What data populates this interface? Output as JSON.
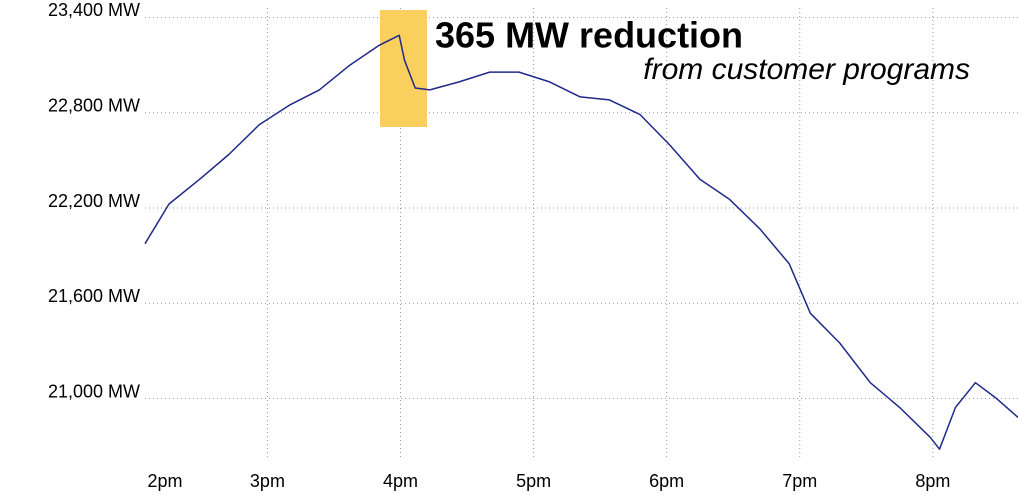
{
  "chart_data": {
    "type": "line",
    "annotation": "365 MW reduction",
    "annotation_subtitle": "from customer programs",
    "x": [
      14.08,
      14.26,
      14.49,
      14.71,
      14.94,
      15.17,
      15.39,
      15.62,
      15.84,
      15.99,
      16.03,
      16.11,
      16.22,
      16.44,
      16.67,
      16.89,
      17.12,
      17.35,
      17.57,
      17.8,
      18.02,
      18.25,
      18.47,
      18.7,
      18.92,
      19.08,
      19.3,
      19.53,
      19.75,
      19.98,
      20.05,
      20.17,
      20.32,
      20.47,
      20.64
    ],
    "series": [
      {
        "color": "#1f2a8a",
        "values": [
          21975,
          22225,
          22381,
          22537,
          22725,
          22850,
          22944,
          23100,
          23225,
          23288,
          23131,
          22956,
          22944,
          22994,
          23056,
          23056,
          22994,
          22900,
          22881,
          22788,
          22600,
          22381,
          22256,
          22069,
          21850,
          21537,
          21350,
          21100,
          20944,
          20756,
          20681,
          20944,
          21100,
          21006,
          20881
        ]
      }
    ],
    "xlim": [
      14.08,
      20.64
    ],
    "ylim": [
      20550,
      23510
    ],
    "xticks": [
      {
        "value": 14,
        "label": "2pm"
      },
      {
        "value": 15,
        "label": "3pm"
      },
      {
        "value": 16,
        "label": "4pm"
      },
      {
        "value": 17,
        "label": "5pm"
      },
      {
        "value": 18,
        "label": "6pm"
      },
      {
        "value": 19,
        "label": "7pm"
      },
      {
        "value": 20,
        "label": "8pm"
      }
    ],
    "yticks": [
      {
        "value": 23400,
        "label": "23,400 MW"
      },
      {
        "value": 22800,
        "label": "22,800 MW"
      },
      {
        "value": 22200,
        "label": "22,200 MW"
      },
      {
        "value": 21600,
        "label": "21,600 MW"
      },
      {
        "value": 21000,
        "label": "21,000 MW"
      }
    ],
    "grid": true,
    "highlight_color": "#f9cf5e"
  }
}
